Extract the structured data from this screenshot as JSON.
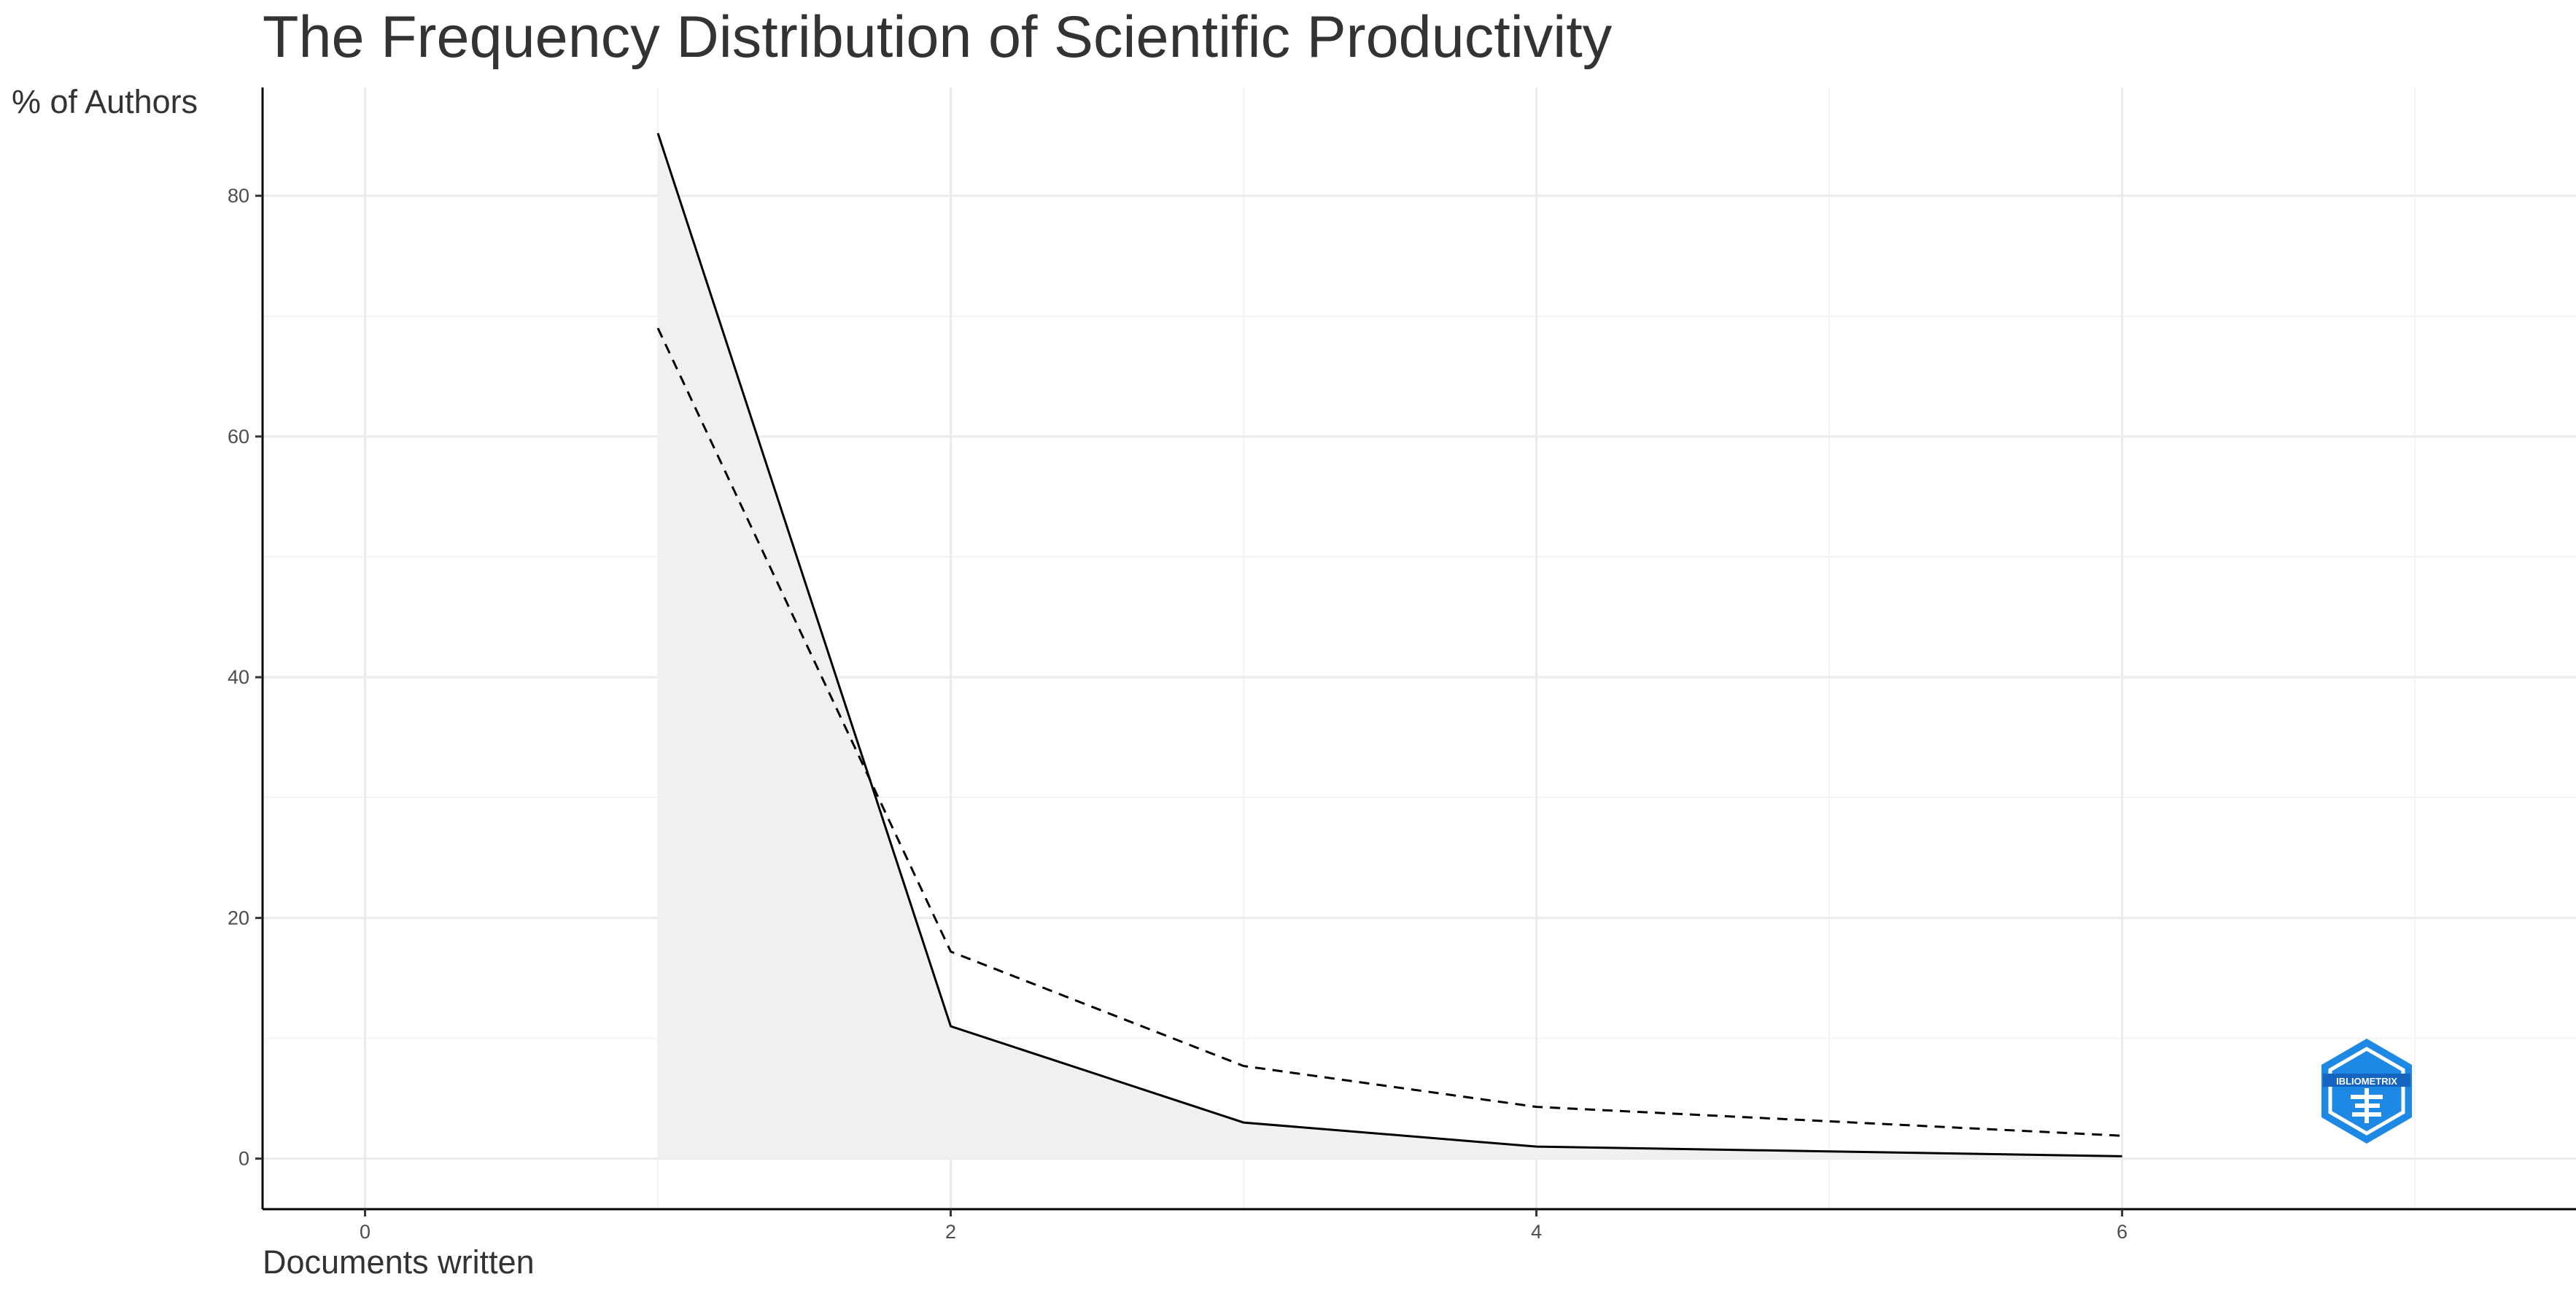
{
  "chart_data": {
    "type": "line",
    "title": "The Frequency Distribution of Scientific Productivity",
    "xlabel": "Documents written",
    "ylabel": "% of Authors",
    "xlim": [
      -0.35,
      7.55
    ],
    "ylim": [
      -4.2,
      89
    ],
    "x_ticks": [
      0,
      2,
      4,
      6
    ],
    "y_ticks": [
      0,
      20,
      40,
      60,
      80
    ],
    "grid": true,
    "series": [
      {
        "style": "solid",
        "area_fill": true,
        "x": [
          1,
          2,
          3,
          4,
          5,
          6
        ],
        "y": [
          85.2,
          11.0,
          3.0,
          1.0,
          0.6,
          0.2
        ]
      },
      {
        "style": "dashed",
        "x": [
          1,
          2,
          3,
          4,
          5,
          6
        ],
        "y": [
          69.0,
          17.2,
          7.7,
          4.3,
          3.1,
          1.9
        ]
      }
    ],
    "colors": {
      "line": "#000000",
      "area": "#f0f0f0",
      "grid_major": "#ebebeb",
      "grid_minor": "#f4f4f4",
      "text": "#333333",
      "tick_text": "#4d4d4d",
      "logo": "#1e88e5"
    }
  },
  "logo": {
    "icon": "bibliometrix-hexagon-logo",
    "text": "IBLIOMETRIX"
  }
}
